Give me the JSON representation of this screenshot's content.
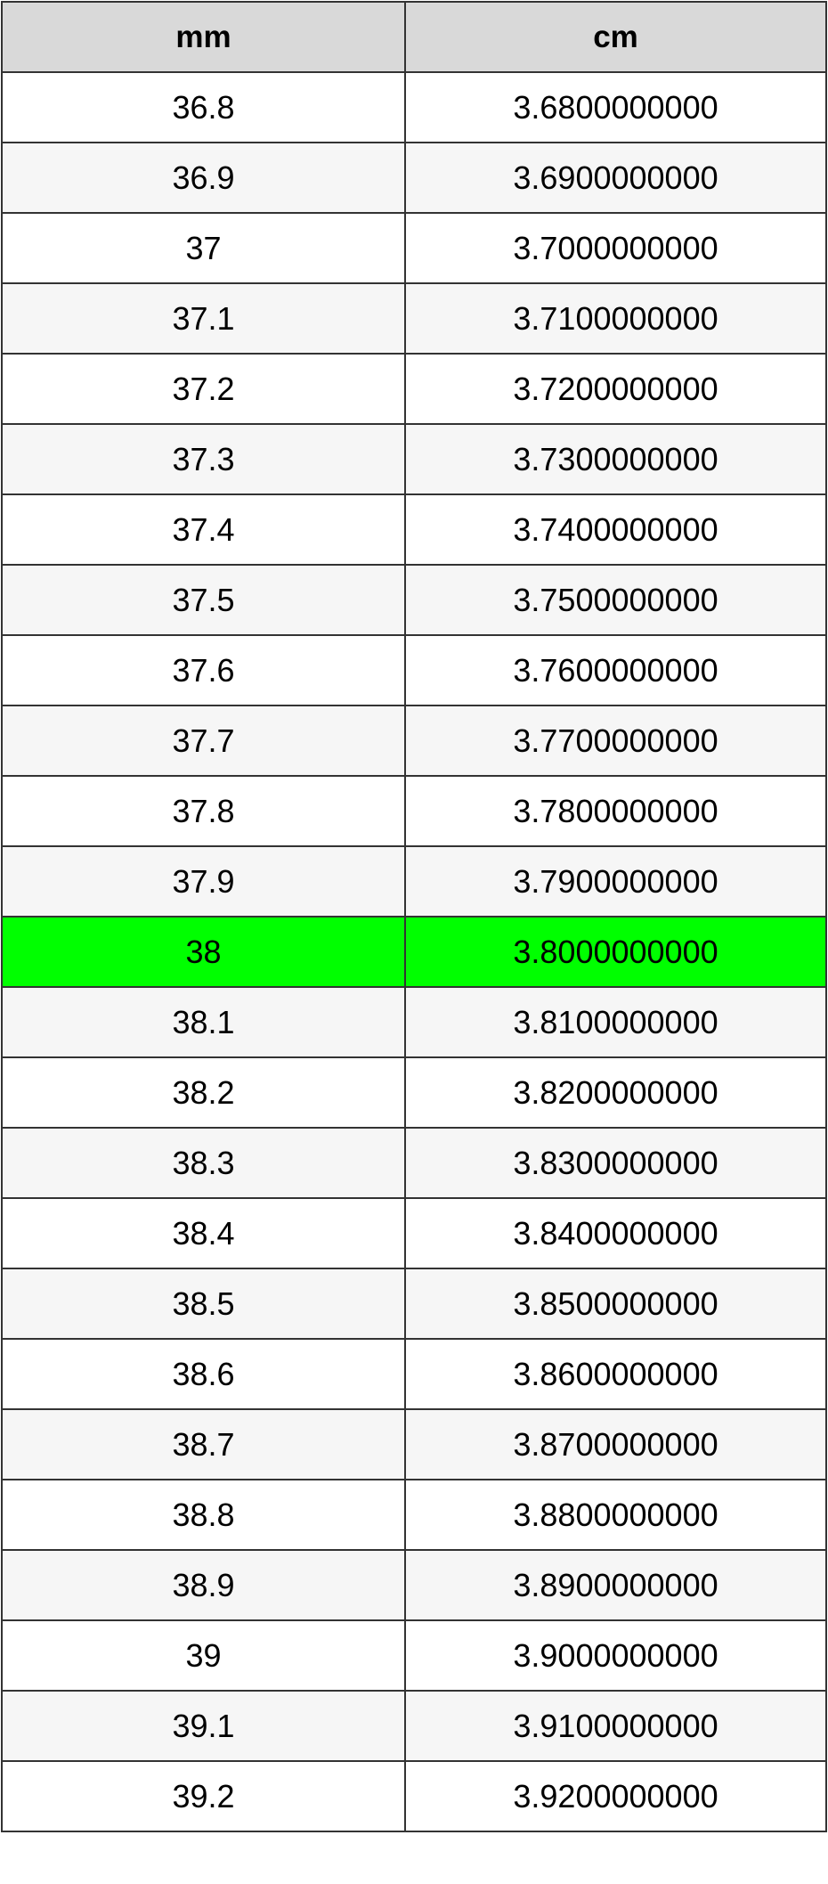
{
  "table": {
    "header": [
      "mm",
      "cm"
    ],
    "rows": [
      [
        "36.8",
        "3.6800000000"
      ],
      [
        "36.9",
        "3.6900000000"
      ],
      [
        "37",
        "3.7000000000"
      ],
      [
        "37.1",
        "3.7100000000"
      ],
      [
        "37.2",
        "3.7200000000"
      ],
      [
        "37.3",
        "3.7300000000"
      ],
      [
        "37.4",
        "3.7400000000"
      ],
      [
        "37.5",
        "3.7500000000"
      ],
      [
        "37.6",
        "3.7600000000"
      ],
      [
        "37.7",
        "3.7700000000"
      ],
      [
        "37.8",
        "3.7800000000"
      ],
      [
        "37.9",
        "3.7900000000"
      ],
      [
        "38",
        "3.8000000000"
      ],
      [
        "38.1",
        "3.8100000000"
      ],
      [
        "38.2",
        "3.8200000000"
      ],
      [
        "38.3",
        "3.8300000000"
      ],
      [
        "38.4",
        "3.8400000000"
      ],
      [
        "38.5",
        "3.8500000000"
      ],
      [
        "38.6",
        "3.8600000000"
      ],
      [
        "38.7",
        "3.8700000000"
      ],
      [
        "38.8",
        "3.8800000000"
      ],
      [
        "38.9",
        "3.8900000000"
      ],
      [
        "39",
        "3.9000000000"
      ],
      [
        "39.1",
        "3.9100000000"
      ],
      [
        "39.2",
        "3.9200000000"
      ]
    ]
  }
}
